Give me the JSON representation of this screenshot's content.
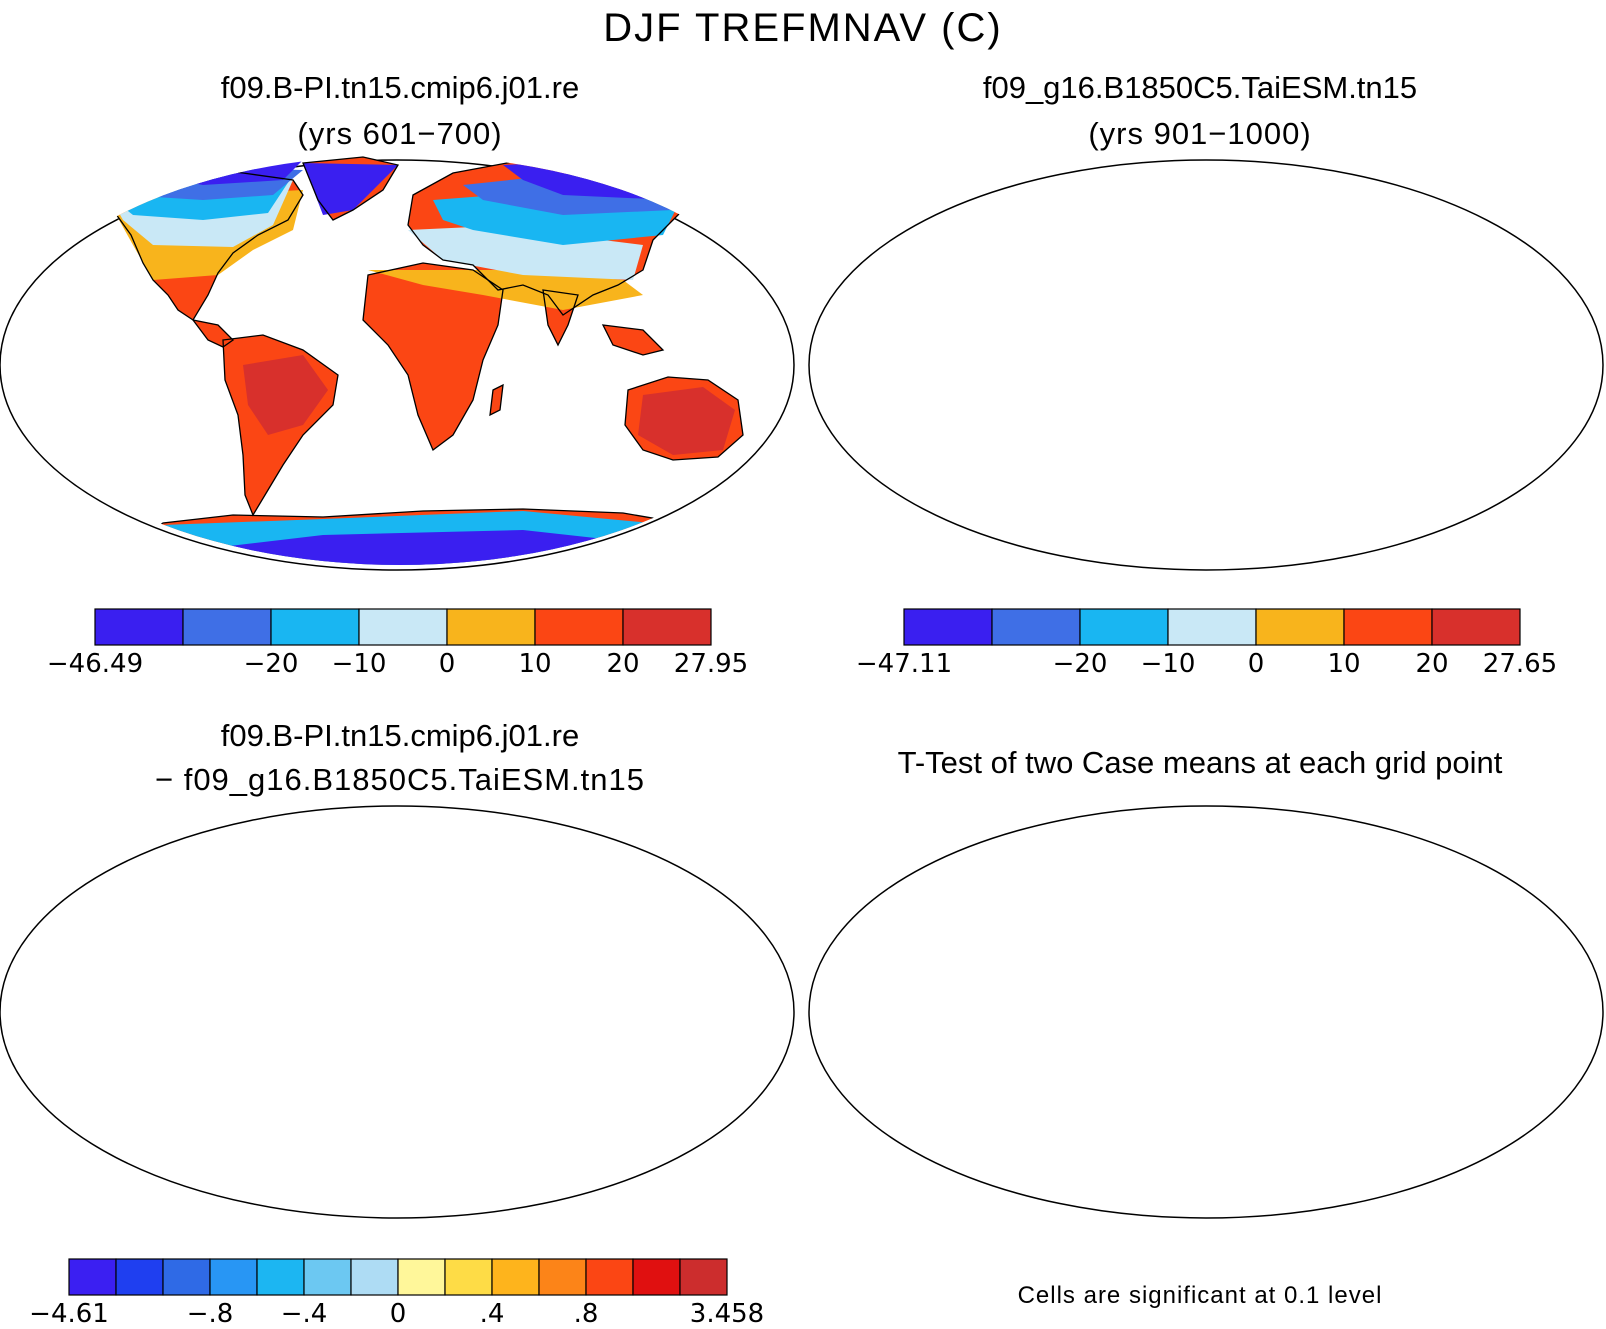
{
  "title": "DJF TREFMNAV (C)",
  "panels": [
    {
      "id": "p1",
      "title": "f09.B-PI.tn15.cmip6.j01.re",
      "subtitle": "(yrs 601−700)",
      "colorbar": {
        "labels": [
          "−46.49",
          "−20",
          "−10",
          "0",
          "10",
          "20",
          "27.95"
        ],
        "colors": [
          "#3a1ff0",
          "#3f6fe6",
          "#19b6f2",
          "#c9e8f6",
          "#f8b41c",
          "#fb4614",
          "#d8302c"
        ]
      }
    },
    {
      "id": "p2",
      "title": "f09_g16.B1850C5.TaiESM.tn15",
      "subtitle": "(yrs 901−1000)",
      "colorbar": {
        "labels": [
          "−47.11",
          "−20",
          "−10",
          "0",
          "10",
          "20",
          "27.65"
        ],
        "colors": [
          "#3a1ff0",
          "#3f6fe6",
          "#19b6f2",
          "#c9e8f6",
          "#f8b41c",
          "#fb4614",
          "#d8302c"
        ]
      }
    },
    {
      "id": "p3",
      "title": "f09.B-PI.tn15.cmip6.j01.re",
      "subtitle": "− f09_g16.B1850C5.TaiESM.tn15",
      "colorbar": {
        "labels": [
          "−4.61",
          "−.8",
          "−.4",
          "0",
          ".4",
          ".8",
          "3.458"
        ],
        "colors": [
          "#3b1ff2",
          "#1f3ff0",
          "#2f6ae6",
          "#2896f4",
          "#1cb6f2",
          "#6cc8f2",
          "#aedcf4",
          "#fff79a",
          "#fedc46",
          "#feb41c",
          "#fc8418",
          "#fb4614",
          "#e01010",
          "#cc2d2d"
        ]
      }
    },
    {
      "id": "p4",
      "title": "T-Test of two Case means at each grid point",
      "note": "Cells are significant at 0.1 level"
    }
  ]
}
